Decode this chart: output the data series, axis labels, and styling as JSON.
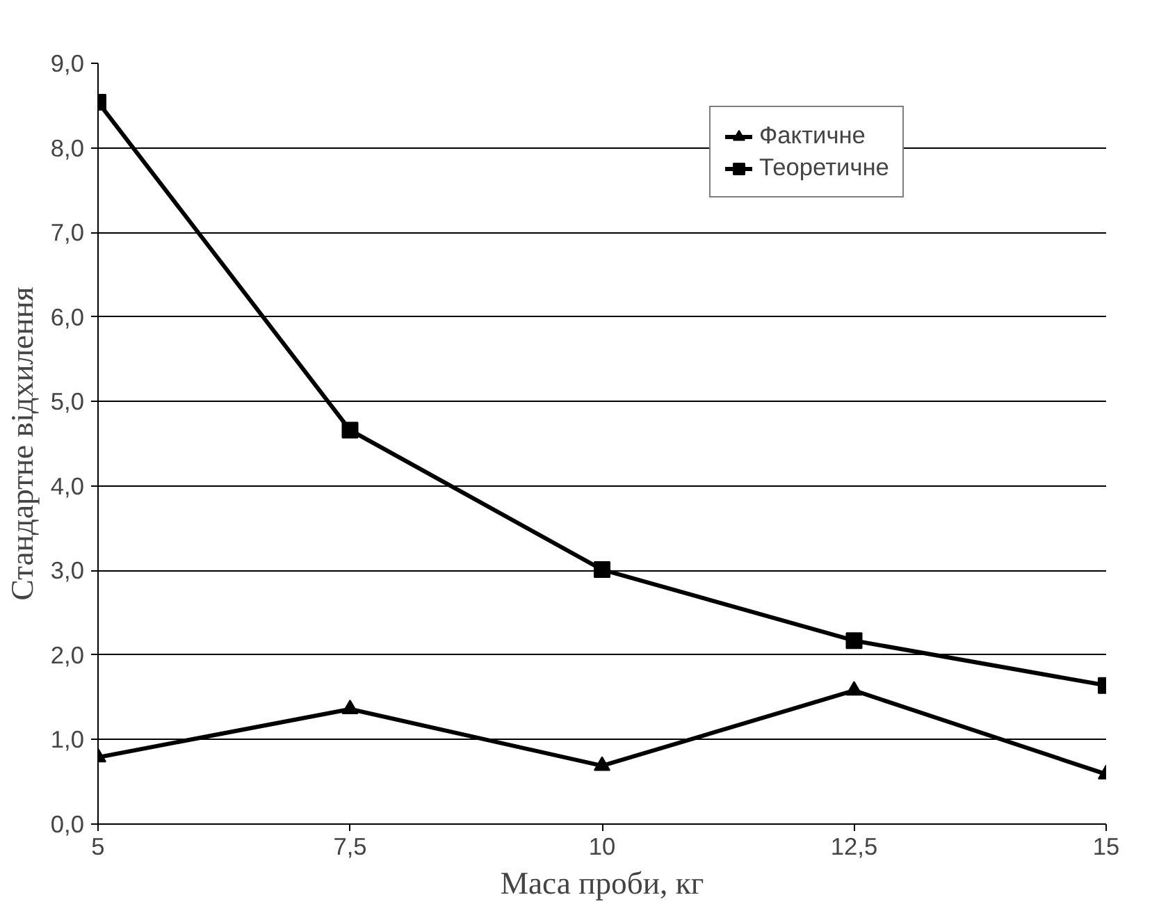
{
  "chart_data": {
    "type": "line",
    "xlabel": "Маса проби, кг",
    "ylabel": "Стандартне відхилення",
    "x": [
      5,
      7.5,
      10,
      12.5,
      15
    ],
    "series": [
      {
        "name": "Фактичне",
        "color": "#000000",
        "marker": "triangle",
        "values": [
          0.79,
          1.36,
          0.69,
          1.58,
          0.59
        ]
      },
      {
        "name": "Теоретичне",
        "color": "#000000",
        "marker": "square",
        "values": [
          8.54,
          4.66,
          3.01,
          2.17,
          1.64
        ]
      }
    ],
    "xlim": [
      5,
      15
    ],
    "xticks": [
      5,
      {
        "value": 7.5,
        "label": "7,5"
      },
      10,
      {
        "value": 12.5,
        "label": "12,5"
      },
      15
    ],
    "ylim": [
      0,
      9
    ],
    "yticks": [
      {
        "value": 0,
        "label": "0,0"
      },
      {
        "value": 1,
        "label": "1,0"
      },
      {
        "value": 2,
        "label": "2,0"
      },
      {
        "value": 3,
        "label": "3,0"
      },
      {
        "value": 4,
        "label": "4,0"
      },
      {
        "value": 5,
        "label": "5,0"
      },
      {
        "value": 6,
        "label": "6,0"
      },
      {
        "value": 7,
        "label": "7,0"
      },
      {
        "value": 8,
        "label": "8,0"
      },
      {
        "value": 9,
        "label": "9,0"
      }
    ],
    "grid": "y",
    "legend": "top right",
    "line_style": "solid"
  }
}
